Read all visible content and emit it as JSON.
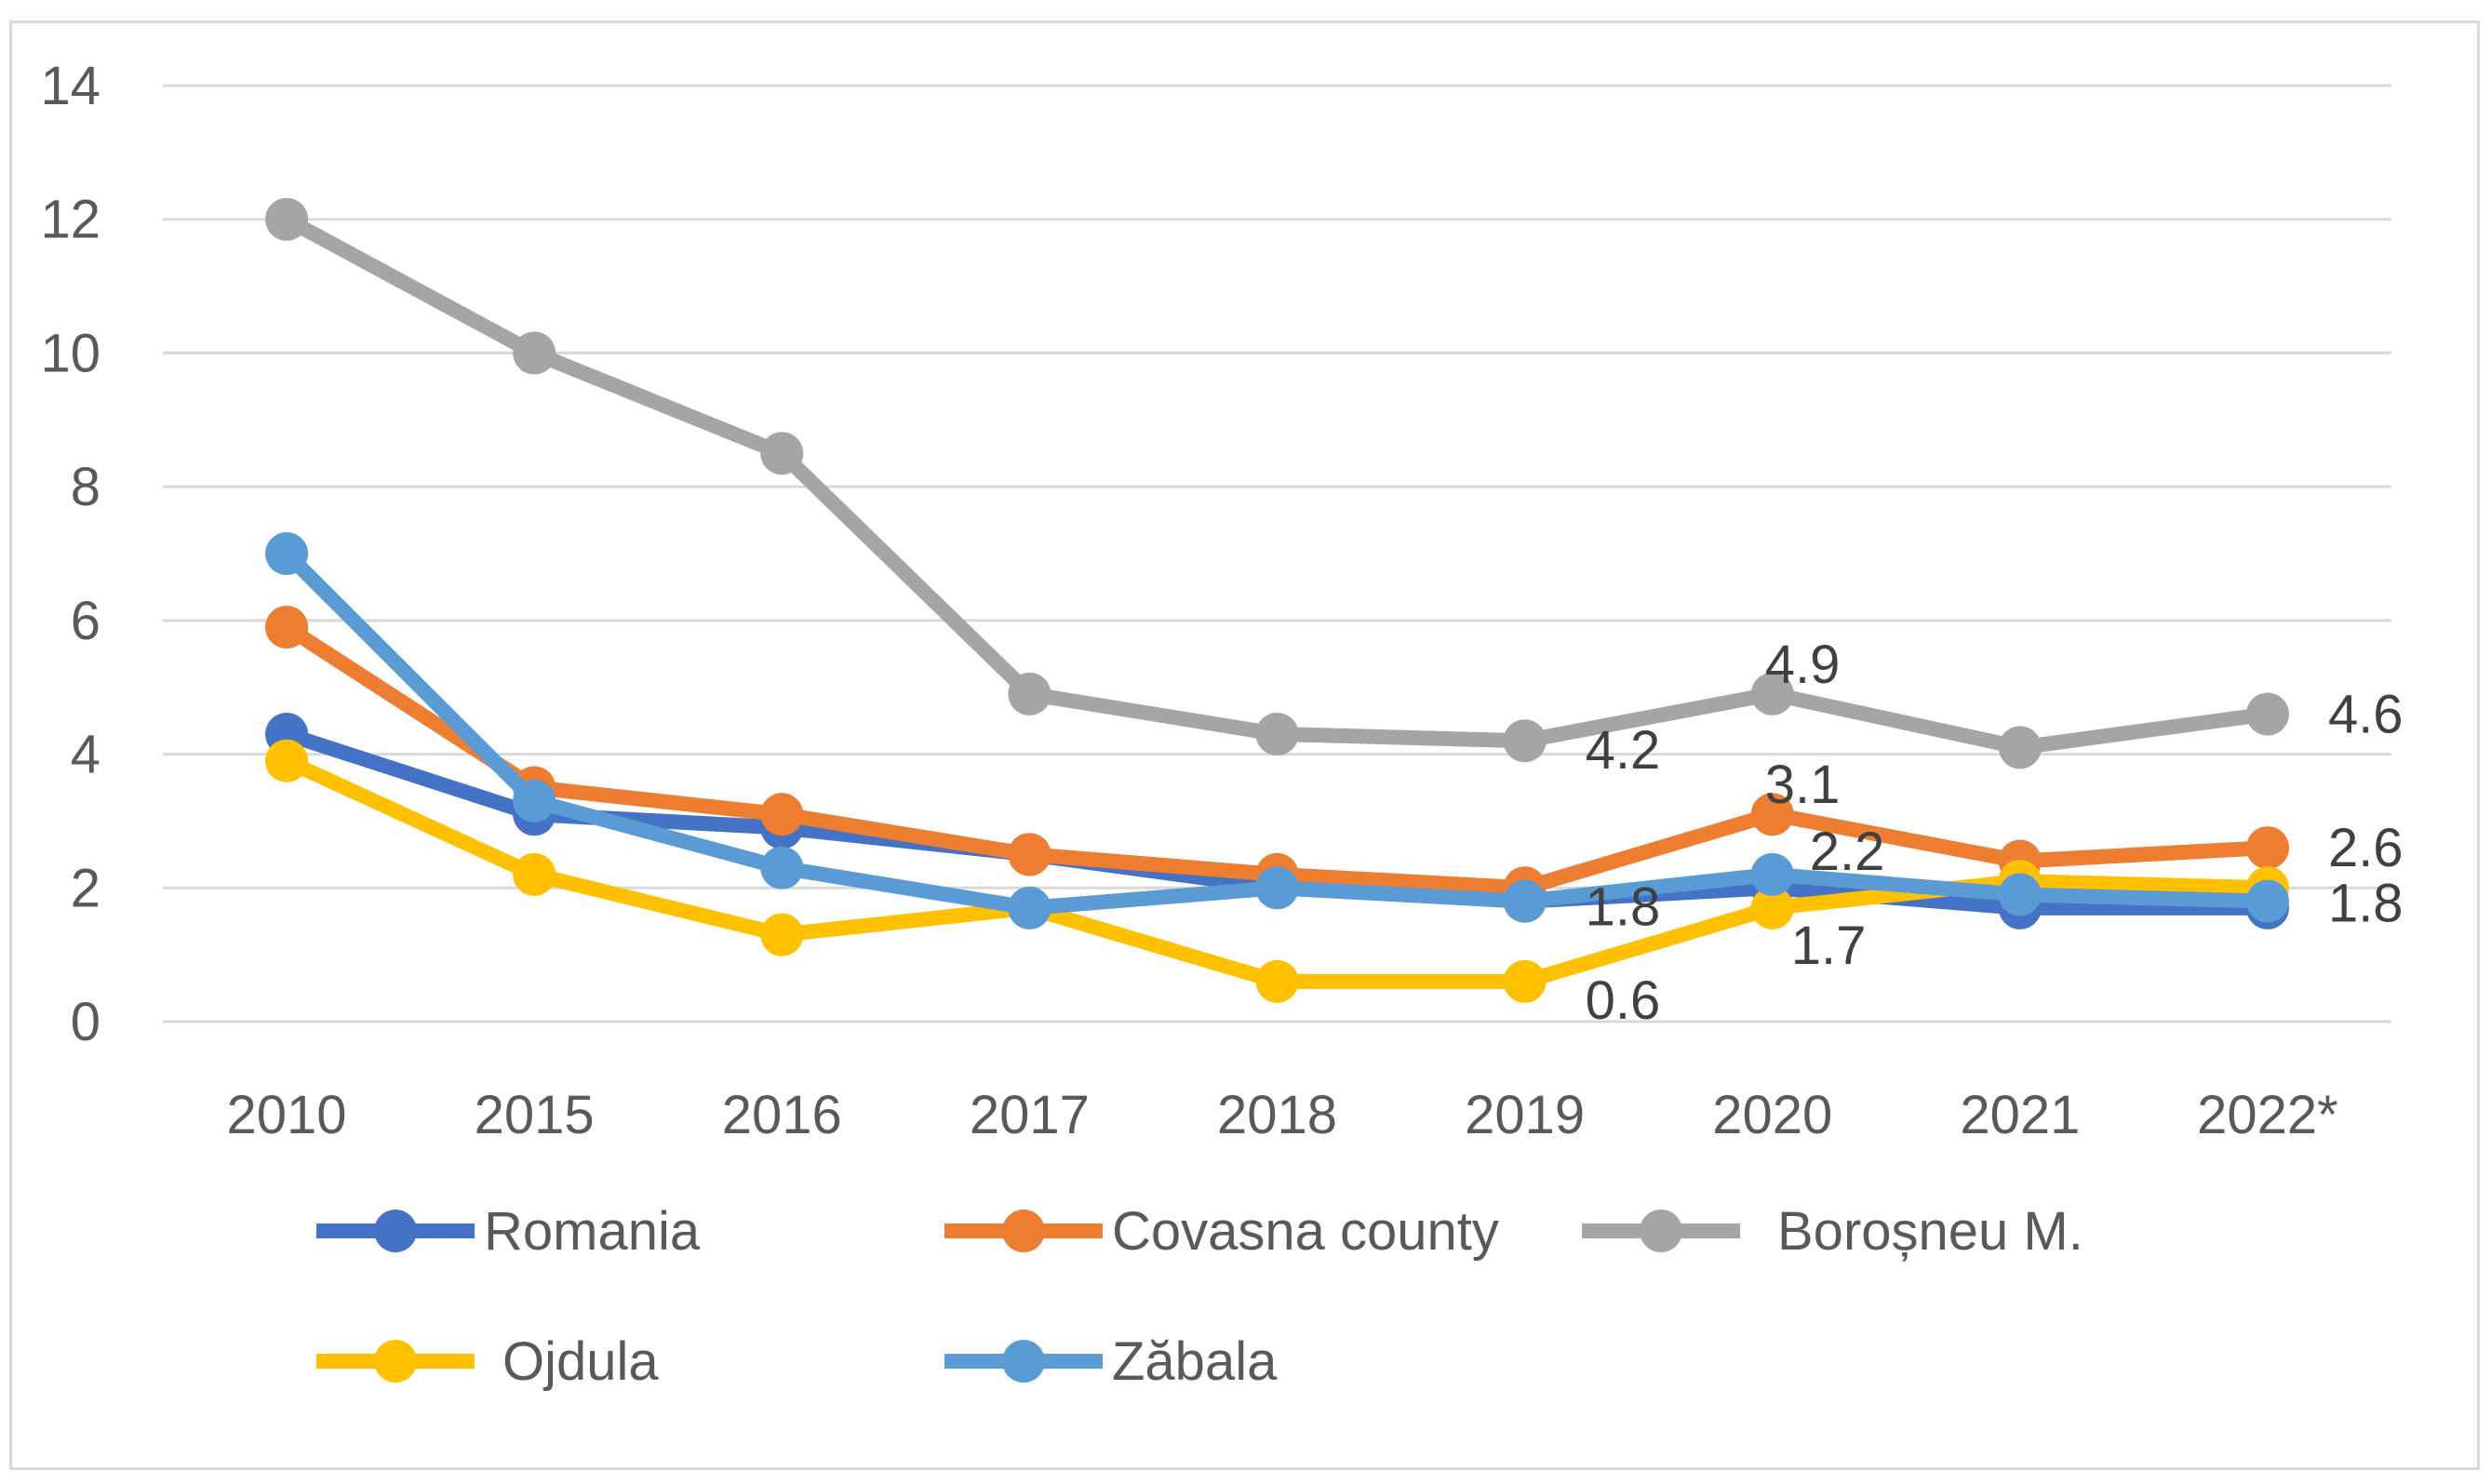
{
  "chart_data": {
    "type": "line",
    "title": "",
    "xlabel": "",
    "ylabel": "",
    "ylim": [
      0,
      14
    ],
    "yticks": [
      "0",
      "2",
      "4",
      "6",
      "8",
      "10",
      "12",
      "14"
    ],
    "categories": [
      "2010",
      "2015",
      "2016",
      "2017",
      "2018",
      "2019",
      "2020",
      "2021",
      "2022*"
    ],
    "grid": true,
    "legend_position": "bottom",
    "series": [
      {
        "name": "Romania",
        "color": "#4472c4",
        "values": [
          4.3,
          3.1,
          2.9,
          2.5,
          2.0,
          1.8,
          2.0,
          1.7,
          1.7
        ]
      },
      {
        "name": "Covasna county",
        "color": "#ed7d31",
        "values": [
          5.9,
          3.5,
          3.1,
          2.5,
          2.2,
          2.0,
          3.1,
          2.4,
          2.6
        ]
      },
      {
        "name": "Boroșneu M.",
        "color": "#a5a5a5",
        "values": [
          12.0,
          10.0,
          8.5,
          4.9,
          4.3,
          4.2,
          4.9,
          4.1,
          4.6
        ]
      },
      {
        "name": "Ojdula",
        "color": "#ffc000",
        "values": [
          3.9,
          2.2,
          1.3,
          1.7,
          0.6,
          0.6,
          1.7,
          2.1,
          2.0
        ]
      },
      {
        "name": "Zăbala",
        "color": "#5b9bd5",
        "values": [
          7.0,
          3.3,
          2.3,
          1.7,
          2.0,
          1.8,
          2.2,
          1.9,
          1.8
        ]
      }
    ],
    "data_labels": [
      {
        "series": 2,
        "index": 5,
        "text": "4.2"
      },
      {
        "series": 2,
        "index": 6,
        "text": "4.9"
      },
      {
        "series": 2,
        "index": 8,
        "text": "4.6"
      },
      {
        "series": 1,
        "index": 6,
        "text": "3.1"
      },
      {
        "series": 1,
        "index": 8,
        "text": "2.6"
      },
      {
        "series": 4,
        "index": 6,
        "text": "2.2"
      },
      {
        "series": 4,
        "index": 5,
        "text": "1.8"
      },
      {
        "series": 4,
        "index": 8,
        "text": "1.8"
      },
      {
        "series": 3,
        "index": 6,
        "text": "1.7"
      },
      {
        "series": 3,
        "index": 5,
        "text": "0.6"
      }
    ]
  }
}
